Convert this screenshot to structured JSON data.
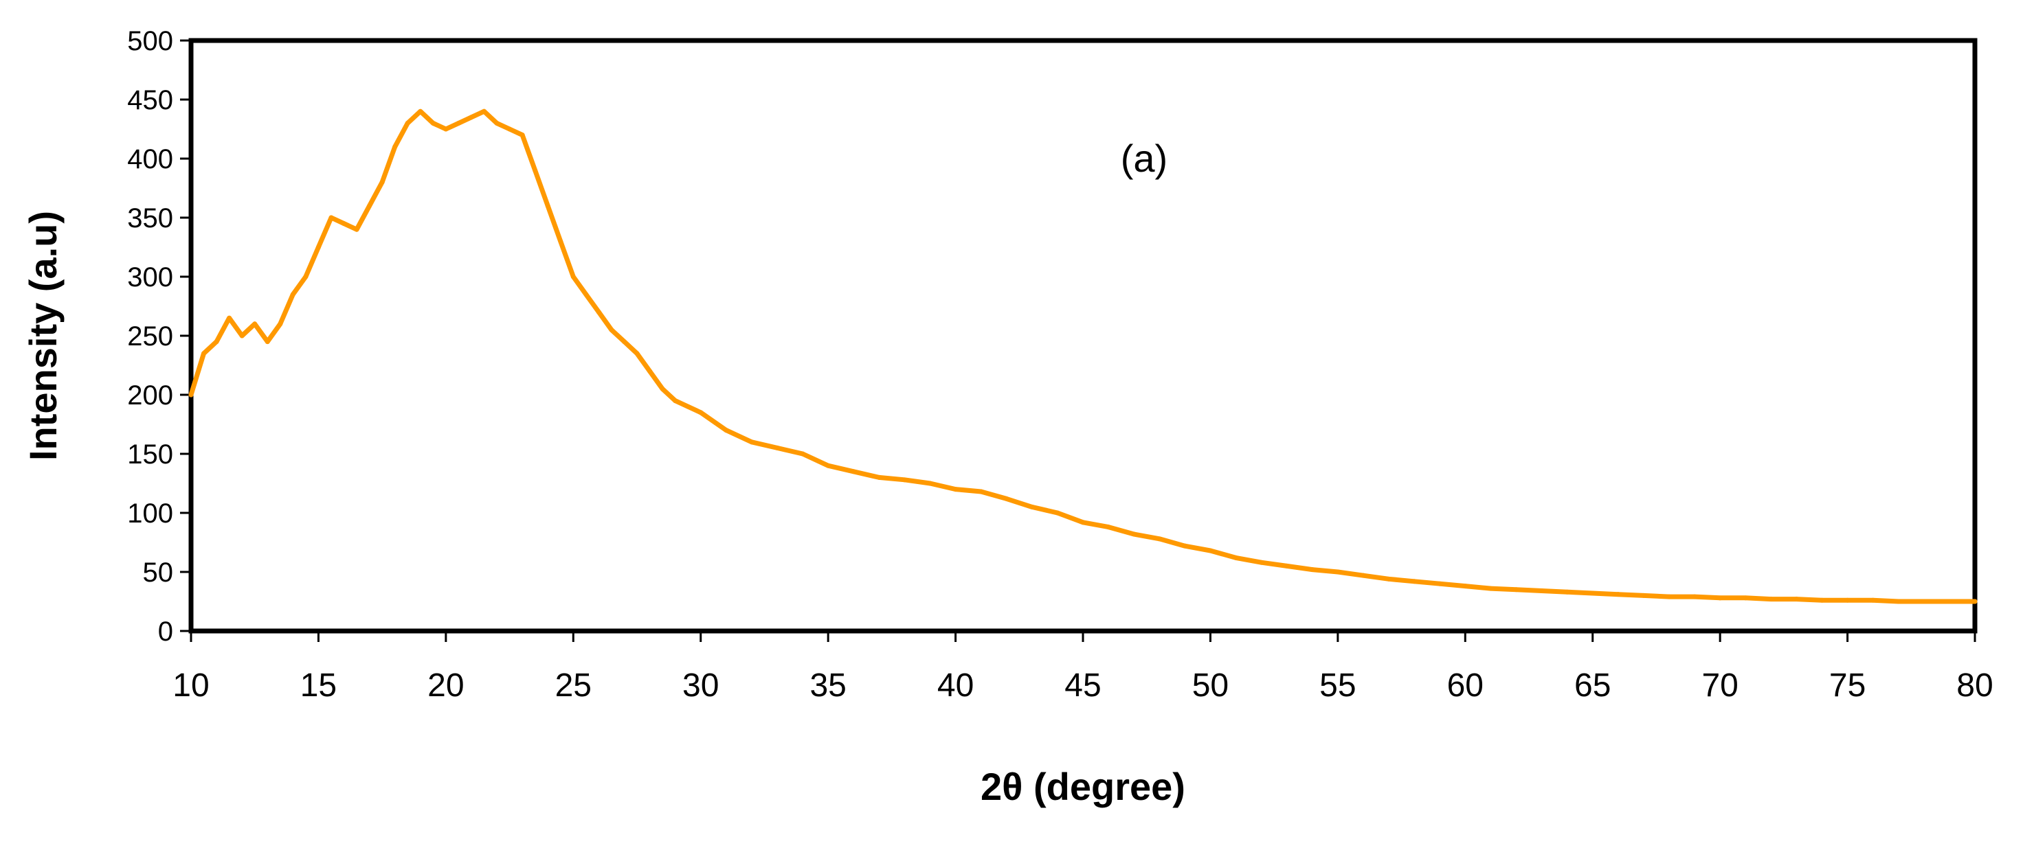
{
  "chart_data": {
    "type": "line",
    "title": "",
    "annotation": "(a)",
    "xlabel": "2θ (degree)",
    "ylabel": "Intensity (a.u)",
    "xlim": [
      10,
      80
    ],
    "ylim": [
      0,
      500
    ],
    "xticks": [
      "10",
      "15",
      "20",
      "25",
      "30",
      "35",
      "40",
      "45",
      "50",
      "55",
      "60",
      "65",
      "70",
      "75",
      "80"
    ],
    "yticks": [
      "0",
      "50",
      "100",
      "150",
      "200",
      "250",
      "300",
      "350",
      "400",
      "450",
      "500"
    ],
    "grid": false,
    "legend": "none",
    "series": [
      {
        "color": "#FF9900",
        "x": [
          10,
          10.5,
          11,
          11.5,
          12,
          12.5,
          13,
          13.5,
          14,
          14.5,
          15,
          15.5,
          16,
          16.5,
          17,
          17.5,
          18,
          18.5,
          19,
          19.5,
          20,
          20.5,
          21,
          21.5,
          22,
          22.5,
          23,
          23.5,
          24,
          24.5,
          25,
          25.5,
          26,
          26.5,
          27,
          27.5,
          28,
          28.5,
          29,
          29.5,
          30,
          31,
          32,
          33,
          34,
          35,
          36,
          37,
          38,
          39,
          40,
          41,
          42,
          43,
          44,
          45,
          46,
          47,
          48,
          49,
          50,
          51,
          52,
          53,
          54,
          55,
          56,
          57,
          58,
          59,
          60,
          61,
          62,
          63,
          64,
          65,
          66,
          67,
          68,
          69,
          70,
          71,
          72,
          73,
          74,
          75,
          76,
          77,
          78,
          79,
          80
        ],
        "y": [
          200,
          235,
          245,
          265,
          250,
          260,
          245,
          260,
          285,
          300,
          325,
          350,
          345,
          340,
          360,
          380,
          410,
          430,
          440,
          430,
          425,
          430,
          435,
          440,
          430,
          425,
          420,
          390,
          360,
          330,
          300,
          285,
          270,
          255,
          245,
          235,
          220,
          205,
          195,
          190,
          185,
          170,
          160,
          155,
          150,
          140,
          135,
          130,
          128,
          125,
          120,
          118,
          112,
          105,
          100,
          92,
          88,
          82,
          78,
          72,
          68,
          62,
          58,
          55,
          52,
          50,
          47,
          44,
          42,
          40,
          38,
          36,
          35,
          34,
          33,
          32,
          31,
          30,
          29,
          29,
          28,
          28,
          27,
          27,
          26,
          26,
          26,
          25,
          25,
          25,
          25
        ]
      }
    ]
  }
}
